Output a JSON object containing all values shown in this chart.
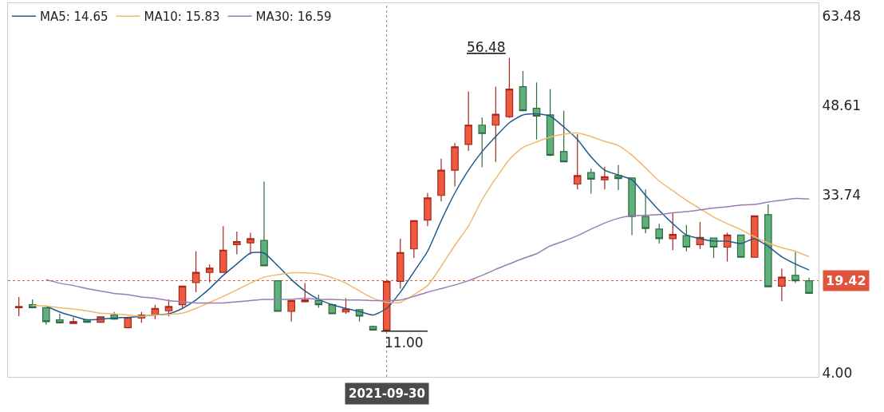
{
  "chart_data": {
    "type": "candlestick",
    "categories": [
      null,
      null,
      null,
      null,
      null,
      null,
      null,
      null,
      null,
      null,
      null,
      null,
      null,
      null,
      null,
      null,
      null,
      null,
      null,
      null,
      null,
      null,
      null,
      null,
      null,
      null,
      null,
      "2021-09-30",
      null,
      null,
      null,
      null,
      null,
      null,
      null,
      null,
      null,
      null,
      null,
      null,
      null,
      null,
      null,
      null,
      null,
      null,
      null,
      null,
      null,
      null,
      null,
      null,
      null,
      null,
      null,
      null,
      null,
      null,
      null
    ],
    "ohlc": [
      [
        14.9,
        16.7,
        13.5,
        15.1
      ],
      [
        15.4,
        16.3,
        14.8,
        14.9
      ],
      [
        14.9,
        15.0,
        12.1,
        12.6
      ],
      [
        12.9,
        13.9,
        12.4,
        12.4
      ],
      [
        12.3,
        13.3,
        12.3,
        12.6
      ],
      [
        12.9,
        13.0,
        12.5,
        12.5
      ],
      [
        12.5,
        13.4,
        12.4,
        13.4
      ],
      [
        13.7,
        14.2,
        12.9,
        13.0
      ],
      [
        11.6,
        13.3,
        11.5,
        13.3
      ],
      [
        13.2,
        14.2,
        12.4,
        13.7
      ],
      [
        13.7,
        15.4,
        13.0,
        14.8
      ],
      [
        14.4,
        16.3,
        13.5,
        15.1
      ],
      [
        15.4,
        18.5,
        14.9,
        18.5
      ],
      [
        19.1,
        24.3,
        17.5,
        20.8
      ],
      [
        20.8,
        22.1,
        19.1,
        21.5
      ],
      [
        20.8,
        28.5,
        20.8,
        24.5
      ],
      [
        25.4,
        27.6,
        23.8,
        25.9
      ],
      [
        25.7,
        27.4,
        23.8,
        26.4
      ],
      [
        26.1,
        35.9,
        21.9,
        21.9
      ],
      [
        19.4,
        19.4,
        14.3,
        14.3
      ],
      [
        14.3,
        16.1,
        12.6,
        16.1
      ],
      [
        15.9,
        19.0,
        15.8,
        16.2
      ],
      [
        16.1,
        17.1,
        14.9,
        15.4
      ],
      [
        15.4,
        15.6,
        13.9,
        13.9
      ],
      [
        14.2,
        16.5,
        13.9,
        14.7
      ],
      [
        14.6,
        14.6,
        12.6,
        13.5
      ],
      [
        11.8,
        11.9,
        11.1,
        11.2
      ],
      [
        11.2,
        19.4,
        11.0,
        19.3
      ],
      [
        19.3,
        26.4,
        18.1,
        24.1
      ],
      [
        24.7,
        29.4,
        23.2,
        29.4
      ],
      [
        29.5,
        34.0,
        28.5,
        33.2
      ],
      [
        33.6,
        39.7,
        32.6,
        37.8
      ],
      [
        37.8,
        42.3,
        35.1,
        41.7
      ],
      [
        42.1,
        50.9,
        41.0,
        45.3
      ],
      [
        45.3,
        46.6,
        38.3,
        43.9
      ],
      [
        45.3,
        51.7,
        39.2,
        47.1
      ],
      [
        46.7,
        56.48,
        46.5,
        51.3
      ],
      [
        51.7,
        54.3,
        47.7,
        47.7
      ],
      [
        48.1,
        52.4,
        42.9,
        46.8
      ],
      [
        47.0,
        51.3,
        40.1,
        40.3
      ],
      [
        40.9,
        47.7,
        39.2,
        39.2
      ],
      [
        35.5,
        43.8,
        34.6,
        36.9
      ],
      [
        37.4,
        38.1,
        33.9,
        36.3
      ],
      [
        36.2,
        38.4,
        34.6,
        36.7
      ],
      [
        36.9,
        38.7,
        34.5,
        36.4
      ],
      [
        36.5,
        36.5,
        27.0,
        30.1
      ],
      [
        30.1,
        34.6,
        27.3,
        28.1
      ],
      [
        28.0,
        28.9,
        25.6,
        26.4
      ],
      [
        26.4,
        30.7,
        24.5,
        27.1
      ],
      [
        26.9,
        28.7,
        24.3,
        25.0
      ],
      [
        25.4,
        29.2,
        24.7,
        26.6
      ],
      [
        26.5,
        26.5,
        23.2,
        25.0
      ],
      [
        25.0,
        27.4,
        22.6,
        27.0
      ],
      [
        27.0,
        27.0,
        23.3,
        23.3
      ],
      [
        23.3,
        30.2,
        23.3,
        30.2
      ],
      [
        30.4,
        32.1,
        18.4,
        18.4
      ],
      [
        18.5,
        21.4,
        16.0,
        20.0
      ],
      [
        20.3,
        24.2,
        19.0,
        19.4
      ],
      [
        19.4,
        19.9,
        17.3,
        17.3
      ]
    ],
    "series": [
      {
        "type": "line",
        "name": "MA5: 14.65",
        "color": "#1f5c8b",
        "values": [
          null,
          null,
          15.2,
          14.2,
          13.5,
          12.9,
          13.0,
          13.2,
          13.3,
          13.5,
          13.7,
          13.9,
          14.8,
          16.2,
          18.1,
          20.3,
          22.2,
          24.0,
          24.0,
          21.9,
          19.6,
          17.7,
          16.3,
          15.4,
          14.8,
          14.3,
          13.7,
          14.8,
          17.5,
          20.9,
          24.3,
          29.4,
          34.0,
          37.8,
          40.9,
          43.4,
          45.7,
          47.0,
          47.2,
          46.8,
          45.0,
          42.9,
          40.0,
          37.8,
          37.0,
          36.2,
          33.6,
          31.1,
          28.9,
          27.0,
          26.4,
          26.0,
          26.0,
          25.6,
          26.4,
          25.1,
          23.4,
          22.2,
          21.2
        ]
      },
      {
        "type": "line",
        "name": "MA10: 15.83",
        "color": "#f0b86c",
        "values": [
          null,
          15.3,
          15.2,
          14.9,
          14.7,
          14.4,
          14.0,
          13.9,
          13.7,
          13.5,
          13.7,
          13.8,
          14.0,
          14.8,
          15.8,
          16.8,
          17.9,
          19.0,
          20.0,
          20.4,
          20.7,
          20.7,
          20.5,
          19.9,
          19.0,
          17.7,
          16.5,
          15.8,
          15.8,
          17.1,
          18.6,
          21.8,
          25.3,
          28.5,
          32.9,
          36.4,
          39.6,
          41.6,
          42.5,
          43.3,
          43.8,
          44.0,
          43.4,
          42.6,
          41.9,
          40.3,
          38.2,
          36.0,
          34.4,
          32.8,
          31.4,
          30.0,
          28.9,
          27.9,
          26.7,
          25.7,
          24.9,
          24.3,
          23.4
        ]
      },
      {
        "type": "line",
        "name": "MA30: 16.59",
        "color": "#9b7bb5",
        "values": [
          null,
          null,
          19.6,
          19.0,
          18.6,
          18.1,
          17.7,
          17.3,
          17.1,
          16.7,
          16.5,
          16.1,
          15.9,
          15.7,
          15.7,
          15.7,
          15.9,
          16.1,
          16.3,
          16.3,
          16.3,
          16.5,
          16.3,
          16.3,
          16.2,
          16.2,
          16.1,
          16.1,
          16.2,
          16.8,
          17.5,
          18.1,
          18.7,
          19.4,
          20.3,
          21.3,
          22.2,
          23.1,
          23.9,
          25.2,
          26.0,
          26.9,
          28.0,
          29.0,
          29.8,
          30.2,
          30.3,
          30.4,
          30.7,
          30.9,
          31.2,
          31.5,
          31.7,
          32.0,
          32.1,
          32.5,
          32.8,
          33.1,
          33.0
        ]
      }
    ],
    "ylim": [
      3.4,
      65.6
    ],
    "yticks": [
      {
        "value": 4.0,
        "label": "4.00"
      },
      {
        "value": 33.74,
        "label": "33.74"
      },
      {
        "value": 48.61,
        "label": "48.61"
      },
      {
        "value": 63.48,
        "label": "63.48"
      }
    ],
    "ref_lines": [
      {
        "axis": "y",
        "value": 19.42,
        "label": "19.42",
        "color": "#e0533c",
        "line_style": "dotted"
      }
    ],
    "annotations": [
      "56.48",
      "11.00"
    ],
    "legend": "top left"
  }
}
